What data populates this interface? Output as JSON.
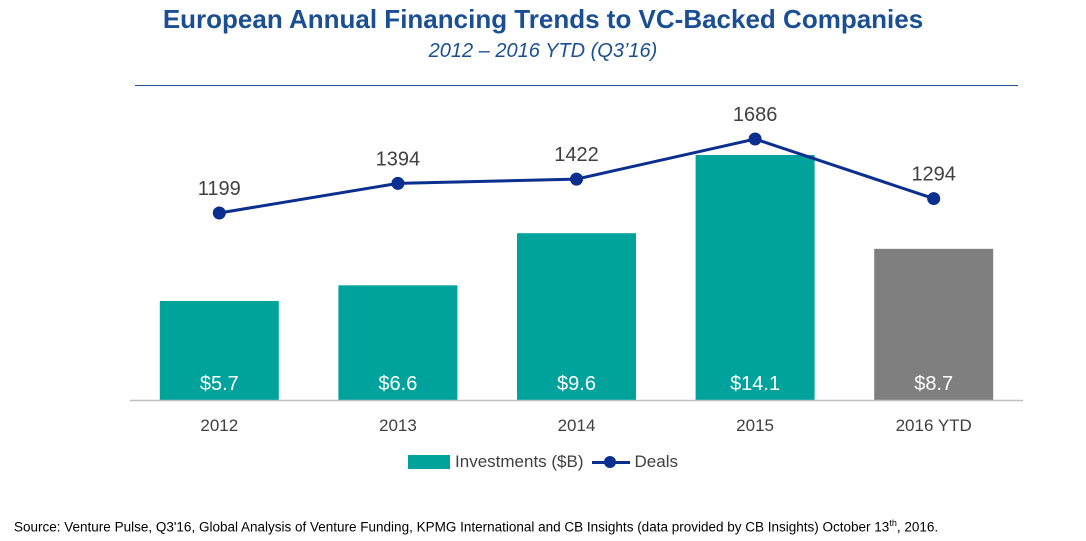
{
  "header": {
    "title": "European Annual Financing Trends to VC-Backed Companies",
    "subtitle": "2012 – 2016 YTD (Q3’16)"
  },
  "chart_data": {
    "type": "bar+line",
    "categories": [
      "2012",
      "2013",
      "2014",
      "2015",
      "2016 YTD"
    ],
    "series": [
      {
        "name": "Investments ($B)",
        "type": "bar",
        "values": [
          5.7,
          6.6,
          9.6,
          14.1,
          8.7
        ],
        "labels": [
          "$5.7",
          "$6.6",
          "$9.6",
          "$14.1",
          "$8.7"
        ],
        "colors": [
          "#00a39b",
          "#00a39b",
          "#00a39b",
          "#00a39b",
          "#7f7f7f"
        ]
      },
      {
        "name": "Deals",
        "type": "line",
        "values": [
          1199,
          1394,
          1422,
          1686,
          1294
        ],
        "labels": [
          "1199",
          "1394",
          "1422",
          "1686",
          "1294"
        ],
        "color": "#0a2f8f"
      }
    ],
    "bar_ylim": [
      0,
      14.1
    ],
    "line_ylim": [
      0,
      1686
    ],
    "legend_position": "bottom"
  },
  "legend": {
    "investments_label": "Investments ($B)",
    "deals_label": "Deals",
    "bar_color": "#00a39b",
    "line_color": "#0a2f8f"
  },
  "footer": {
    "source_prefix": "Source: Venture Pulse, Q3'16, Global Analysis of Venture Funding, KPMG International and CB Insights (data provided by CB Insights) October 13",
    "source_sup": "th",
    "source_suffix": ", 2016."
  }
}
